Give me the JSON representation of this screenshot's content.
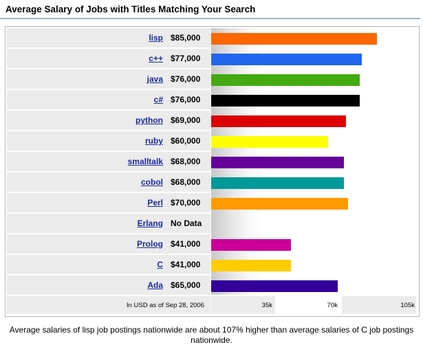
{
  "header": {
    "title": "Average Salary of Jobs with Titles Matching Your Search"
  },
  "chart_data": {
    "type": "bar",
    "orientation": "horizontal",
    "categories": [
      "lisp",
      "c++",
      "java",
      "c#",
      "python",
      "ruby",
      "smalltalk",
      "cobol",
      "Perl",
      "Erlang",
      "Prolog",
      "C",
      "Ada"
    ],
    "values": [
      85000,
      77000,
      76000,
      76000,
      69000,
      60000,
      68000,
      68000,
      70000,
      null,
      41000,
      41000,
      65000
    ],
    "value_labels": [
      "$85,000",
      "$77,000",
      "$76,000",
      "$76,000",
      "$69,000",
      "$60,000",
      "$68,000",
      "$68,000",
      "$70,000",
      "No Data",
      "$41,000",
      "$41,000",
      "$65,000"
    ],
    "colors": [
      "#ff6600",
      "#2266ee",
      "#44aa11",
      "#000000",
      "#dd0000",
      "#ffff00",
      "#660099",
      "#009999",
      "#ff9900",
      null,
      "#cc0099",
      "#ffcc00",
      "#330099"
    ],
    "xlim": [
      0,
      105000
    ],
    "x_ticks": [
      35000,
      70000,
      105000
    ],
    "x_tick_labels": [
      "35k",
      "70k",
      "105k"
    ],
    "footnote": "In USD as of Sep 28, 2006",
    "legend": "none",
    "grid": false
  },
  "caption": "Average salaries of lisp job postings nationwide are about 107% higher than average salaries of C job postings nationwide."
}
